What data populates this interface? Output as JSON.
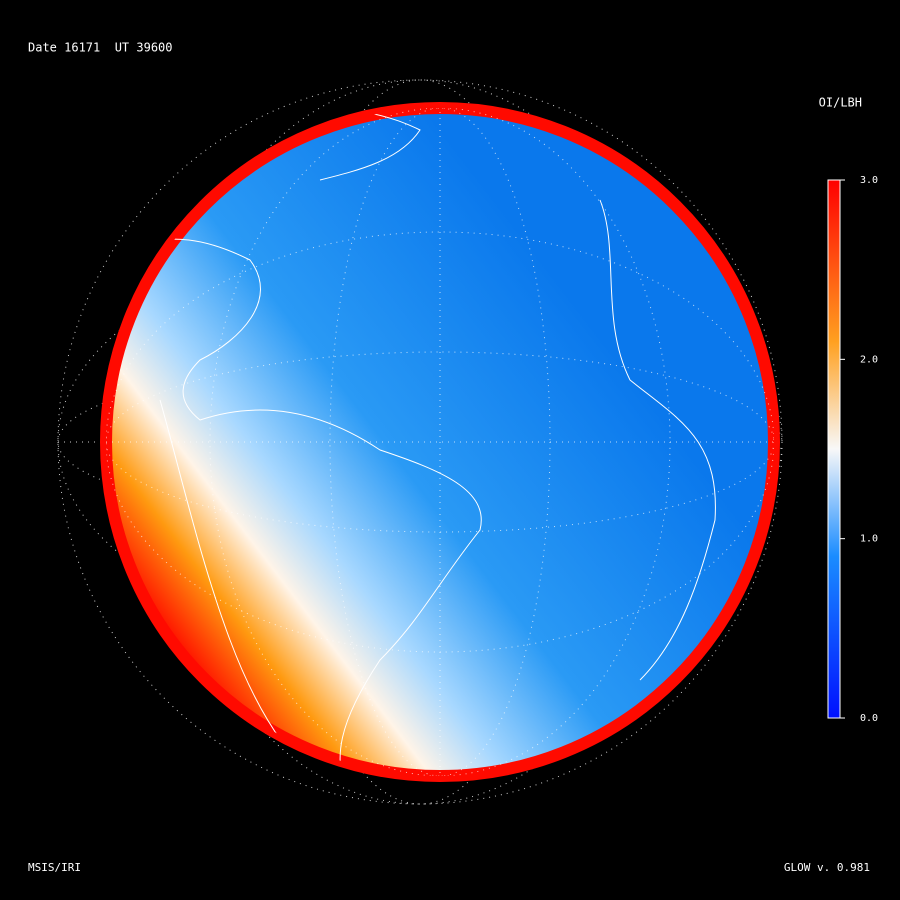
{
  "header": {
    "label": "Date 16171  UT 39600"
  },
  "colorbar": {
    "title": "OI/LBH",
    "lim": [
      0,
      3
    ],
    "ticks": [
      {
        "value": 0,
        "label": "0.0"
      },
      {
        "value": 1,
        "label": "1.0"
      },
      {
        "value": 2,
        "label": "2.0"
      },
      {
        "value": 3,
        "label": "3.0"
      }
    ]
  },
  "footer": {
    "left": "MSIS/IRI",
    "right": "GLOW v. 0.981"
  }
}
